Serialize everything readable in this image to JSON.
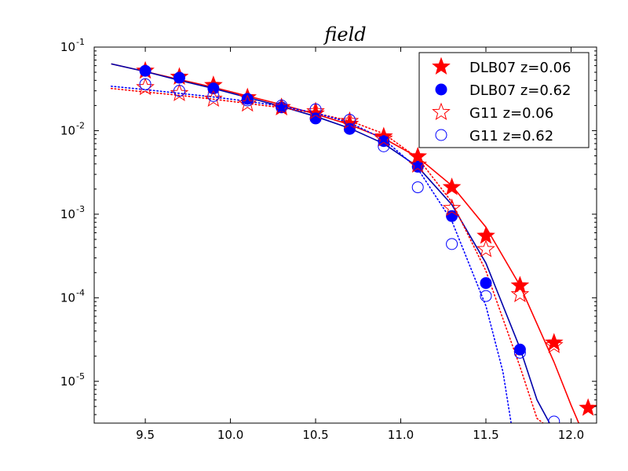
{
  "chart_data": {
    "type": "scatter",
    "title": "field",
    "xlabel": "",
    "ylabel": "",
    "xlim": [
      9.2,
      12.15
    ],
    "ylim_log10": [
      -5.5,
      -1
    ],
    "yscale": "log",
    "x_ticks": [
      9.5,
      10.0,
      10.5,
      11.0,
      11.5,
      12.0
    ],
    "x_tick_labels": [
      "9.5",
      "10.0",
      "10.5",
      "11.0",
      "11.5",
      "12.0"
    ],
    "y_ticks_log10": [
      -5,
      -4,
      -3,
      -2,
      -1
    ],
    "y_tick_labels": [
      {
        "base": "10",
        "exp": "-5"
      },
      {
        "base": "10",
        "exp": "-4"
      },
      {
        "base": "10",
        "exp": "-3"
      },
      {
        "base": "10",
        "exp": "-2"
      },
      {
        "base": "10",
        "exp": "-1"
      }
    ],
    "legend_position": "top-right",
    "series": [
      {
        "name": "DLB07 z=0.06",
        "color": "#ff0000",
        "marker": "star-filled",
        "x": [
          9.5,
          9.7,
          9.9,
          10.1,
          10.3,
          10.5,
          10.7,
          10.9,
          11.1,
          11.3,
          11.5,
          11.7,
          11.9,
          12.1
        ],
        "y": [
          0.052,
          0.044,
          0.035,
          0.025,
          0.019,
          0.016,
          0.012,
          0.0085,
          0.0049,
          0.0021,
          0.00055,
          0.00014,
          2.9e-05,
          4.8e-06
        ]
      },
      {
        "name": "DLB07 z=0.62",
        "color": "#0000ff",
        "marker": "circle-filled",
        "x": [
          9.5,
          9.7,
          9.9,
          10.1,
          10.3,
          10.5,
          10.7,
          10.9,
          11.1,
          11.3,
          11.5,
          11.7
        ],
        "y": [
          0.052,
          0.043,
          0.032,
          0.024,
          0.019,
          0.014,
          0.0105,
          0.0075,
          0.0037,
          0.00095,
          0.00015,
          2.4e-05
        ]
      },
      {
        "name": "G11 z=0.06",
        "color": "#ff0000",
        "marker": "star-open",
        "x": [
          9.5,
          9.7,
          9.9,
          10.1,
          10.3,
          10.5,
          10.7,
          10.9,
          11.1,
          11.3,
          11.5,
          11.7,
          11.9
        ],
        "y": [
          0.033,
          0.028,
          0.024,
          0.021,
          0.019,
          0.017,
          0.013,
          0.008,
          0.0039,
          0.00118,
          0.00038,
          0.00011,
          2.7e-05
        ]
      },
      {
        "name": "G11 z=0.62",
        "color": "#0000ff",
        "marker": "circle-open",
        "x": [
          9.5,
          9.7,
          9.9,
          10.1,
          10.3,
          10.5,
          10.7,
          10.9,
          11.1,
          11.3,
          11.5,
          11.7,
          11.9
        ],
        "y": [
          0.036,
          0.03,
          0.026,
          0.023,
          0.02,
          0.018,
          0.0135,
          0.0065,
          0.0021,
          0.00044,
          0.000105,
          2.2e-05,
          3.3e-06
        ]
      }
    ],
    "fit_curves": [
      {
        "name": "DLB07 z=0.06 fit",
        "color": "#ff0000",
        "style": "solid",
        "x": [
          9.3,
          9.5,
          9.7,
          9.9,
          10.1,
          10.3,
          10.5,
          10.7,
          10.9,
          11.1,
          11.3,
          11.5,
          11.7,
          11.9,
          12.0,
          12.05
        ],
        "y": [
          0.063,
          0.051,
          0.041,
          0.033,
          0.026,
          0.0205,
          0.0158,
          0.0118,
          0.0081,
          0.0048,
          0.0022,
          0.0007,
          0.00014,
          1.7e-05,
          5.2e-06,
          3e-06
        ]
      },
      {
        "name": "DLB07 z=0.62 fit",
        "color": "#0000aa",
        "style": "solid",
        "x": [
          9.3,
          9.5,
          9.7,
          9.9,
          10.1,
          10.3,
          10.5,
          10.7,
          10.9,
          11.1,
          11.3,
          11.5,
          11.7,
          11.8,
          11.88
        ],
        "y": [
          0.063,
          0.051,
          0.04,
          0.032,
          0.025,
          0.0195,
          0.0148,
          0.0107,
          0.007,
          0.0037,
          0.0013,
          0.00026,
          2.5e-05,
          6e-06,
          3e-06
        ]
      },
      {
        "name": "G11 z=0.06 fit",
        "color": "#ff0000",
        "style": "dotted",
        "x": [
          9.3,
          9.5,
          9.7,
          9.9,
          10.1,
          10.3,
          10.5,
          10.7,
          10.9,
          11.1,
          11.3,
          11.5,
          11.7,
          11.8,
          11.85
        ],
        "y": [
          0.032,
          0.029,
          0.0265,
          0.0238,
          0.0212,
          0.0188,
          0.0162,
          0.0131,
          0.0092,
          0.0047,
          0.0014,
          0.00021,
          1.5e-05,
          3.6e-06,
          3e-06
        ]
      },
      {
        "name": "G11 z=0.62 fit",
        "color": "#0000ff",
        "style": "dotted",
        "x": [
          9.3,
          9.5,
          9.7,
          9.9,
          10.1,
          10.3,
          10.5,
          10.7,
          10.9,
          11.1,
          11.3,
          11.5,
          11.6,
          11.65
        ],
        "y": [
          0.034,
          0.031,
          0.028,
          0.0253,
          0.0225,
          0.0196,
          0.0163,
          0.0125,
          0.0079,
          0.0035,
          0.00083,
          8e-05,
          1.3e-05,
          3e-06
        ]
      }
    ]
  }
}
